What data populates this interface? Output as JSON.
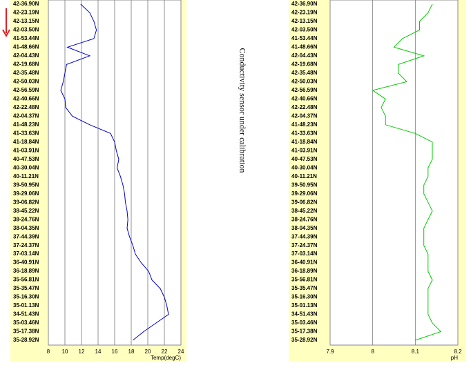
{
  "annotation": "Conductivity sensor under calibration",
  "chart_data": [
    {
      "type": "line",
      "orientation": "horizontal",
      "xlabel": "Temp(degC)",
      "color": "#0000cc",
      "grid": true,
      "categories": [
        "42-36.90N",
        "42-23.19N",
        "42-13.15N",
        "42-03.50N",
        "41-53.44N",
        "41-48.66N",
        "42-04.43N",
        "42-19.68N",
        "42-35.48N",
        "42-50.03N",
        "42-56.59N",
        "42-40.66N",
        "42-22.48N",
        "42-04.37N",
        "41-48.23N",
        "41-33.63N",
        "41-18.84N",
        "41-03.91N",
        "40-47.53N",
        "40-30.04N",
        "40-11.21N",
        "39-50.95N",
        "39-29.06N",
        "39-06.82N",
        "38-45.22N",
        "38-24.76N",
        "38-04.35N",
        "37-44.39N",
        "37-24.37N",
        "37-03.14N",
        "36-40.91N",
        "36-18.89N",
        "35-56.81N",
        "35-35.47N",
        "35-16.30N",
        "35-01.13N",
        "34-51.43N",
        "35-03.46N",
        "35-17.38N",
        "35-28.92N"
      ],
      "values": [
        11.9,
        13,
        13.5,
        13.8,
        13.5,
        10.3,
        13,
        10.2,
        10,
        9.8,
        9.5,
        10,
        10.1,
        10.9,
        13,
        15.5,
        16,
        16.2,
        16.5,
        16.3,
        16.7,
        17,
        17.2,
        17.3,
        17.5,
        17.6,
        17.5,
        17.8,
        18.2,
        18.5,
        19.2,
        20.1,
        20.5,
        21.5,
        22,
        22.3,
        22.5,
        21,
        19.5,
        18.2
      ],
      "xlim": [
        8,
        24
      ],
      "xticks": [
        8,
        10,
        12,
        14,
        16,
        18,
        20,
        22,
        24
      ]
    },
    {
      "type": "line",
      "orientation": "horizontal",
      "xlabel": "pH",
      "color": "#00cc00",
      "grid": true,
      "categories": [
        "42-36.90N",
        "42-23.19N",
        "42-13.15N",
        "42-03.50N",
        "41-53.44N",
        "41-48.66N",
        "42-04.43N",
        "42-19.68N",
        "42-35.48N",
        "42-50.03N",
        "42-56.59N",
        "42-40.66N",
        "42-22.48N",
        "42-04.37N",
        "41-48.23N",
        "41-33.63N",
        "41-18.84N",
        "41-03.91N",
        "40-47.53N",
        "40-30.04N",
        "40-11.21N",
        "39-50.95N",
        "39-29.06N",
        "39-06.82N",
        "38-45.22N",
        "38-24.76N",
        "38-04.35N",
        "37-44.39N",
        "37-24.37N",
        "37-03.14N",
        "36-40.91N",
        "36-18.89N",
        "35-56.81N",
        "35-35.47N",
        "35-16.30N",
        "35-01.13N",
        "34-51.43N",
        "35-03.46N",
        "35-17.38N",
        "35-28.92N"
      ],
      "values": [
        8.14,
        8.13,
        8.11,
        8.11,
        8.07,
        8.05,
        8.12,
        8.06,
        8.06,
        8.08,
        8.0,
        8.03,
        8.02,
        8.03,
        8.03,
        8.1,
        8.14,
        8.14,
        8.14,
        8.13,
        8.13,
        8.12,
        8.12,
        8.13,
        8.14,
        8.13,
        8.12,
        8.12,
        8.12,
        8.13,
        8.13,
        8.13,
        8.14,
        8.13,
        8.13,
        8.13,
        8.13,
        8.14,
        8.16,
        8.1
      ],
      "xlim": [
        7.9,
        8.2
      ],
      "xticks": [
        7.9,
        8,
        8.1,
        8.2
      ]
    }
  ]
}
